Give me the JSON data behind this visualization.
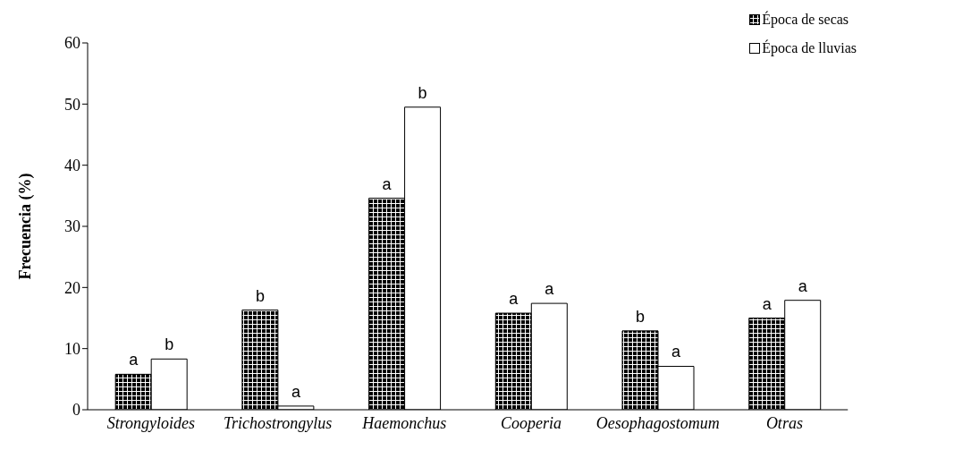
{
  "chart_data": {
    "type": "bar",
    "ylabel": "Frecuencia (%)",
    "categories": [
      "Strongyloides",
      "Trichostrongylus",
      "Haemonchus",
      "Cooperia",
      "Oesophagostomum",
      "Otras"
    ],
    "series": [
      {
        "name": "Época de secas",
        "color": "#000000",
        "values": [
          5.8,
          16.3,
          34.6,
          15.8,
          12.9,
          15.0
        ],
        "value_labels": [
          "a",
          "b",
          "a",
          "a",
          "b",
          "a"
        ]
      },
      {
        "name": "Época de lluvias",
        "color": "#ffffff",
        "values": [
          8.3,
          0.6,
          49.5,
          17.4,
          7.1,
          17.9
        ],
        "value_labels": [
          "b",
          "a",
          "b",
          "a",
          "a",
          "a"
        ]
      }
    ],
    "ylim": [
      0,
      60
    ],
    "yticks": [
      0,
      10,
      20,
      30,
      40,
      50,
      60
    ],
    "grid": false,
    "legend": "top right"
  }
}
